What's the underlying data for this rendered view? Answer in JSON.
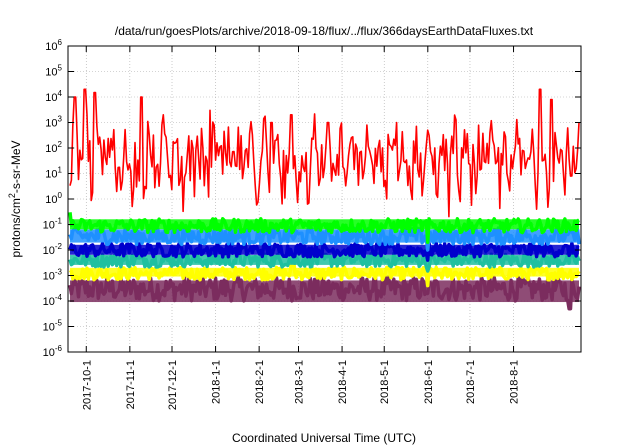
{
  "chart_data": {
    "type": "line",
    "title": "/data/run/goesPlots/archive/2018-09-18/flux/../flux/366daysEarthDataFluxes.txt",
    "xlabel": "Coordinated Universal Time (UTC)",
    "ylabel": {
      "prefix": "protons/cm",
      "sup": "2",
      "suffix": "-s-sr-MeV"
    },
    "log_scale_y": true,
    "grid": true,
    "legend": "none",
    "x_range": [
      "2017-09-18",
      "2018-09-18"
    ],
    "ylim": [
      1e-06,
      1000000.0
    ],
    "x_ticks": [
      "2017-10-1",
      "2017-11-1",
      "2017-12-1",
      "2018-1-1",
      "2018-2-1",
      "2018-3-1",
      "2018-4-1",
      "2018-5-1",
      "2018-6-1",
      "2018-7-1",
      "2018-8-1"
    ],
    "y_ticks": [
      {
        "base": "10",
        "exp": "-6"
      },
      {
        "base": "10",
        "exp": "-5"
      },
      {
        "base": "10",
        "exp": "-4"
      },
      {
        "base": "10",
        "exp": "-3"
      },
      {
        "base": "10",
        "exp": "-2"
      },
      {
        "base": "10",
        "exp": "-1"
      },
      {
        "base": "10",
        "exp": "0"
      },
      {
        "base": "10",
        "exp": "1"
      },
      {
        "base": "10",
        "exp": "2"
      },
      {
        "base": "10",
        "exp": "3"
      },
      {
        "base": "10",
        "exp": "4"
      },
      {
        "base": "10",
        "exp": "5"
      },
      {
        "base": "10",
        "exp": "6"
      }
    ],
    "series": [
      {
        "color": "#7b2d5e",
        "typical": 0.0003,
        "low": 7e-05,
        "high": 0.0008,
        "spikes": [
          {
            "x": "2018-6-1",
            "y": 0.0002
          },
          {
            "x": "2018-9-10",
            "y": 5e-05
          }
        ]
      },
      {
        "color": "#ffff00",
        "typical": 0.0012,
        "low": 0.0007,
        "high": 0.0025,
        "spikes": [
          {
            "x": "2018-2-25",
            "y": 0.006
          },
          {
            "x": "2018-6-1",
            "y": 0.0004
          }
        ]
      },
      {
        "color": "#20c0a0",
        "typical": 0.004,
        "low": 0.002,
        "high": 0.008,
        "spikes": [
          {
            "x": "2018-6-1",
            "y": 0.0015
          }
        ]
      },
      {
        "color": "#0000cc",
        "typical": 0.01,
        "low": 0.005,
        "high": 0.02,
        "spikes": [
          {
            "x": "2018-6-1",
            "y": 0.004
          }
        ]
      },
      {
        "color": "#1e90ff",
        "typical": 0.035,
        "low": 0.015,
        "high": 0.08,
        "spikes": [
          {
            "x": "2018-6-1",
            "y": 0.01
          }
        ]
      },
      {
        "color": "#00ff00",
        "typical": 0.09,
        "low": 0.05,
        "high": 0.2,
        "spikes": [
          {
            "x": "2017-9-19",
            "y": 0.3
          },
          {
            "x": "2018-6-1",
            "y": 0.02
          }
        ]
      },
      {
        "color": "#ff0000",
        "typical": 30,
        "low": 0.15,
        "high": 20000,
        "spikes": [
          {
            "x": "2017-9-23",
            "y": 10000
          },
          {
            "x": "2017-9-30",
            "y": 20000
          },
          {
            "x": "2017-10-7",
            "y": 15000
          },
          {
            "x": "2017-11-9",
            "y": 10000
          },
          {
            "x": "2017-11-25",
            "y": 2000
          },
          {
            "x": "2017-12-28",
            "y": 3000
          },
          {
            "x": "2018-2-10",
            "y": 1000
          },
          {
            "x": "2018-2-24",
            "y": 2000
          },
          {
            "x": "2018-3-22",
            "y": 1000
          },
          {
            "x": "2018-5-10",
            "y": 1000
          },
          {
            "x": "2018-6-1",
            "y": 500
          },
          {
            "x": "2018-8-20",
            "y": 20000
          },
          {
            "x": "2018-8-28",
            "y": 8000
          },
          {
            "x": "2018-9-17",
            "y": 1000
          }
        ]
      }
    ]
  }
}
